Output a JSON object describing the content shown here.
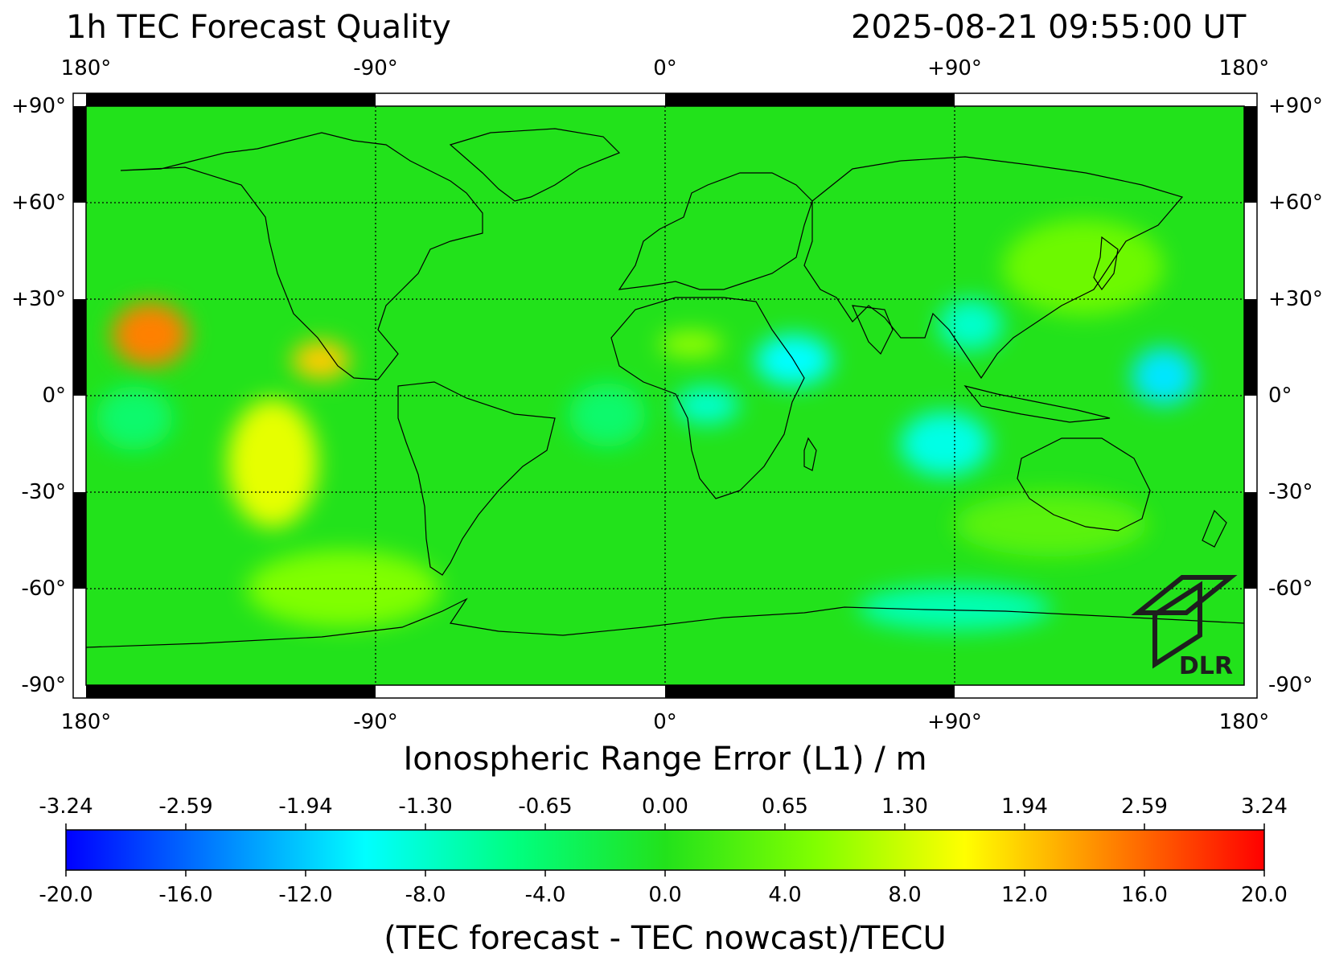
{
  "header": {
    "title": "1h TEC Forecast Quality",
    "timestamp": "2025-08-21 09:55:00 UT"
  },
  "map": {
    "lon_ticks": [
      "180°",
      "-90°",
      "0°",
      "+90°",
      "180°"
    ],
    "lat_ticks": [
      "+90°",
      "+60°",
      "+30°",
      "0°",
      "-30°",
      "-60°",
      "-90°"
    ],
    "lon_range": [
      -180,
      180
    ],
    "lat_range": [
      -90,
      90
    ],
    "grid": true,
    "background_color": "#22e21b",
    "logo_text": "DLR",
    "anomalies": [
      {
        "lon": -160,
        "lat": 19,
        "value": 15,
        "rlon": 12,
        "rlat": 10
      },
      {
        "lon": -107,
        "lat": 11,
        "value": 12,
        "rlon": 9,
        "rlat": 6
      },
      {
        "lon": -122,
        "lat": -21,
        "value": 9,
        "rlon": 14,
        "rlat": 20
      },
      {
        "lon": 40,
        "lat": 11,
        "value": -10,
        "rlon": 12,
        "rlat": 8
      },
      {
        "lon": 13,
        "lat": -3,
        "value": -8,
        "rlon": 10,
        "rlat": 6
      },
      {
        "lon": 87,
        "lat": -15,
        "value": -9,
        "rlon": 14,
        "rlat": 10
      },
      {
        "lon": 95,
        "lat": 22,
        "value": -8,
        "rlon": 10,
        "rlat": 8
      },
      {
        "lon": 155,
        "lat": 6,
        "value": -11,
        "rlon": 10,
        "rlat": 9
      },
      {
        "lon": 90,
        "lat": -66,
        "value": -7,
        "rlon": 30,
        "rlat": 7
      },
      {
        "lon": -165,
        "lat": -7,
        "value": -4,
        "rlon": 12,
        "rlat": 10
      },
      {
        "lon": -18,
        "lat": -6,
        "value": -4,
        "rlon": 12,
        "rlat": 10
      },
      {
        "lon": 8,
        "lat": 16,
        "value": 6,
        "rlon": 10,
        "rlat": 4
      },
      {
        "lon": 130,
        "lat": 40,
        "value": 4,
        "rlon": 25,
        "rlat": 15
      },
      {
        "lon": -100,
        "lat": -60,
        "value": 5,
        "rlon": 30,
        "rlat": 12
      },
      {
        "lon": 120,
        "lat": -40,
        "value": 3,
        "rlon": 30,
        "rlat": 10
      }
    ]
  },
  "xlabel": "Ionospheric Range Error (L1) / m",
  "colorbar": {
    "top_ticks": [
      "-3.24",
      "-2.59",
      "-1.94",
      "-1.30",
      "-0.65",
      "0.00",
      "0.65",
      "1.30",
      "1.94",
      "2.59",
      "3.24"
    ],
    "bottom_ticks": [
      "-20.0",
      "-16.0",
      "-12.0",
      "-8.0",
      "-4.0",
      "0.0",
      "4.0",
      "8.0",
      "12.0",
      "16.0",
      "20.0"
    ],
    "range": [
      -20,
      20
    ],
    "range_m": [
      -3.24,
      3.24
    ],
    "label": "(TEC forecast - TEC nowcast)/TECU",
    "colors": [
      "#0000ff",
      "#0080ff",
      "#00ffff",
      "#00ff80",
      "#22e21b",
      "#80ff00",
      "#ffff00",
      "#ff8000",
      "#ff0000"
    ]
  }
}
